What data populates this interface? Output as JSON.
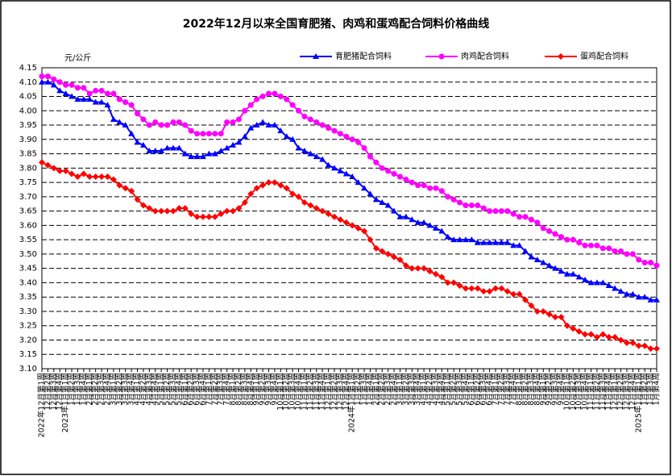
{
  "chart_data": {
    "type": "line",
    "title": "2022年12月以来全国育肥猪、肉鸡和蛋鸡配合饲料价格曲线",
    "y_label": "元/公斤",
    "grid": true,
    "ylim": [
      3.1,
      4.15
    ],
    "yticks": [
      {
        "value": 3.1,
        "label": "3.10"
      },
      {
        "value": 3.15,
        "label": "3.15"
      },
      {
        "value": 3.2,
        "label": "3.20"
      },
      {
        "value": 3.25,
        "label": "3.25"
      },
      {
        "value": 3.3,
        "label": "3.30"
      },
      {
        "value": 3.35,
        "label": "3.35"
      },
      {
        "value": 3.4,
        "label": "3.40"
      },
      {
        "value": 3.45,
        "label": "3.45"
      },
      {
        "value": 3.5,
        "label": "3.50"
      },
      {
        "value": 3.55,
        "label": "3.55"
      },
      {
        "value": 3.6,
        "label": "3.60"
      },
      {
        "value": 3.65,
        "label": "3.65"
      },
      {
        "value": 3.7,
        "label": "3.70"
      },
      {
        "value": 3.75,
        "label": "3.75"
      },
      {
        "value": 3.8,
        "label": "3.80"
      },
      {
        "value": 3.85,
        "label": "3.85"
      },
      {
        "value": 3.9,
        "label": "3.90"
      },
      {
        "value": 3.95,
        "label": "3.95"
      },
      {
        "value": 4.0,
        "label": "4.00"
      },
      {
        "value": 4.05,
        "label": "4.05"
      },
      {
        "value": 4.1,
        "label": "4.10"
      },
      {
        "value": 4.15,
        "label": "4.15"
      }
    ],
    "categories": [
      "2022年12月第1周",
      "12月第2周",
      "12月第3周",
      "12月第4周",
      "2023年1月第1周",
      "1月第2周",
      "1月第3周",
      "1月第4周",
      "2月第1周",
      "2月第2周",
      "2月第3周",
      "2月第4周",
      "3月第1周",
      "3月第2周",
      "3月第3周",
      "3月第4周",
      "4月第1周",
      "4月第2周",
      "4月第3周",
      "4月第4周",
      "5月第1周",
      "5月第2周",
      "5月第3周",
      "5月第4周",
      "6月第1周",
      "6月第2周",
      "6月第3周",
      "6月第4周",
      "7月第1周",
      "7月第2周",
      "7月第3周",
      "7月第4周",
      "8月第1周",
      "8月第2周",
      "8月第3周",
      "8月第4周",
      "9月第1周",
      "9月第2周",
      "9月第3周",
      "9月第4周",
      "10月第1周",
      "10月第2周",
      "10月第3周",
      "10月第4周",
      "11月第1周",
      "11月第2周",
      "11月第3周",
      "11月第4周",
      "12月第1周",
      "12月第2周",
      "12月第3周",
      "12月第4周",
      "2024年1月第1周",
      "1月第2周",
      "1月第3周",
      "1月第4周",
      "2月第1周",
      "2月第2周",
      "2月第3周",
      "2月第4周",
      "3月第1周",
      "3月第2周",
      "3月第3周",
      "3月第4周",
      "4月第1周",
      "4月第2周",
      "4月第3周",
      "4月第4周",
      "5月第1周",
      "5月第2周",
      "5月第3周",
      "5月第4周",
      "6月第1周",
      "6月第2周",
      "6月第3周",
      "6月第4周",
      "7月第1周",
      "7月第2周",
      "7月第3周",
      "7月第4周",
      "8月第1周",
      "8月第2周",
      "8月第3周",
      "8月第4周",
      "9月第1周",
      "9月第2周",
      "9月第3周",
      "9月第4周",
      "10月第1周",
      "10月第2周",
      "10月第3周",
      "10月第4周",
      "11月第1周",
      "11月第2周",
      "11月第3周",
      "11月第4周",
      "12月第1周",
      "12月第2周",
      "12月第3周",
      "12月第4周",
      "2025年1月第1周",
      "1月第2周",
      "1月第3周",
      "1月第4周"
    ],
    "series": [
      {
        "name": "育肥猪配合饲料",
        "color": "#0000ff",
        "marker": "triangle",
        "values": [
          4.1,
          4.1,
          4.09,
          4.07,
          4.06,
          4.05,
          4.04,
          4.04,
          4.04,
          4.03,
          4.03,
          4.02,
          3.97,
          3.96,
          3.95,
          3.92,
          3.89,
          3.88,
          3.86,
          3.86,
          3.86,
          3.87,
          3.87,
          3.87,
          3.85,
          3.84,
          3.84,
          3.84,
          3.85,
          3.85,
          3.86,
          3.87,
          3.88,
          3.89,
          3.91,
          3.94,
          3.95,
          3.96,
          3.95,
          3.95,
          3.93,
          3.91,
          3.9,
          3.87,
          3.86,
          3.85,
          3.84,
          3.83,
          3.81,
          3.8,
          3.79,
          3.78,
          3.77,
          3.75,
          3.73,
          3.71,
          3.69,
          3.68,
          3.67,
          3.65,
          3.63,
          3.63,
          3.62,
          3.61,
          3.61,
          3.6,
          3.59,
          3.58,
          3.56,
          3.55,
          3.55,
          3.55,
          3.55,
          3.54,
          3.54,
          3.54,
          3.54,
          3.54,
          3.54,
          3.53,
          3.53,
          3.51,
          3.49,
          3.48,
          3.47,
          3.46,
          3.45,
          3.44,
          3.43,
          3.43,
          3.42,
          3.41,
          3.4,
          3.4,
          3.4,
          3.39,
          3.38,
          3.37,
          3.36,
          3.36,
          3.35,
          3.35,
          3.34,
          3.34
        ]
      },
      {
        "name": "肉鸡配合饲料",
        "color": "#ff00ff",
        "marker": "circle",
        "values": [
          4.12,
          4.12,
          4.11,
          4.1,
          4.09,
          4.09,
          4.08,
          4.08,
          4.06,
          4.07,
          4.07,
          4.06,
          4.06,
          4.04,
          4.03,
          4.02,
          3.99,
          3.97,
          3.95,
          3.96,
          3.95,
          3.95,
          3.96,
          3.96,
          3.95,
          3.93,
          3.92,
          3.92,
          3.92,
          3.92,
          3.92,
          3.96,
          3.96,
          3.97,
          4.0,
          4.02,
          4.04,
          4.05,
          4.06,
          4.06,
          4.05,
          4.04,
          4.02,
          4.0,
          3.98,
          3.97,
          3.96,
          3.95,
          3.94,
          3.93,
          3.92,
          3.91,
          3.9,
          3.89,
          3.87,
          3.84,
          3.82,
          3.8,
          3.79,
          3.78,
          3.77,
          3.76,
          3.75,
          3.74,
          3.74,
          3.73,
          3.73,
          3.72,
          3.7,
          3.69,
          3.68,
          3.67,
          3.67,
          3.67,
          3.66,
          3.65,
          3.65,
          3.65,
          3.65,
          3.64,
          3.63,
          3.63,
          3.62,
          3.61,
          3.59,
          3.58,
          3.57,
          3.56,
          3.55,
          3.55,
          3.54,
          3.53,
          3.53,
          3.53,
          3.52,
          3.52,
          3.51,
          3.51,
          3.5,
          3.5,
          3.48,
          3.47,
          3.47,
          3.46
        ]
      },
      {
        "name": "蛋鸡配合饲料",
        "color": "#ff0000",
        "marker": "diamond",
        "values": [
          3.82,
          3.81,
          3.8,
          3.79,
          3.79,
          3.78,
          3.77,
          3.78,
          3.77,
          3.77,
          3.77,
          3.77,
          3.76,
          3.74,
          3.73,
          3.72,
          3.69,
          3.67,
          3.66,
          3.65,
          3.65,
          3.65,
          3.65,
          3.66,
          3.66,
          3.64,
          3.63,
          3.63,
          3.63,
          3.63,
          3.64,
          3.65,
          3.65,
          3.66,
          3.68,
          3.71,
          3.73,
          3.74,
          3.75,
          3.75,
          3.74,
          3.73,
          3.71,
          3.7,
          3.68,
          3.67,
          3.66,
          3.65,
          3.64,
          3.63,
          3.62,
          3.61,
          3.6,
          3.59,
          3.58,
          3.55,
          3.52,
          3.51,
          3.5,
          3.49,
          3.48,
          3.46,
          3.45,
          3.45,
          3.45,
          3.44,
          3.43,
          3.42,
          3.4,
          3.4,
          3.39,
          3.38,
          3.38,
          3.38,
          3.37,
          3.37,
          3.38,
          3.38,
          3.37,
          3.36,
          3.36,
          3.34,
          3.32,
          3.3,
          3.3,
          3.29,
          3.28,
          3.28,
          3.25,
          3.24,
          3.23,
          3.22,
          3.22,
          3.21,
          3.22,
          3.21,
          3.21,
          3.2,
          3.19,
          3.19,
          3.18,
          3.18,
          3.17,
          3.17
        ]
      }
    ]
  }
}
